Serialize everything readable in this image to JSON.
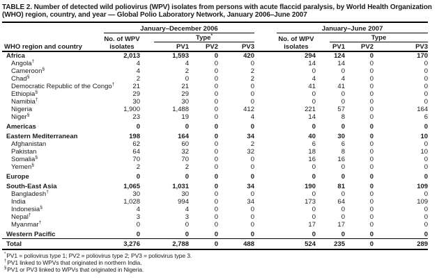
{
  "title": "TABLE 2. Number of detected wild poliovirus (WPV) isolates from persons with acute flaccid paralysis, by World Health Organization (WHO) region, country, and year — Global Polio Laboratory Network, January 2006–June 2007",
  "headers": {
    "stub": "WHO region and country",
    "group_2006": "January–December 2006",
    "group_2007": "January–June 2007",
    "isolates_line1": "No. of WPV",
    "isolates_line2": "isolates",
    "type_label": "Type",
    "type_2006_sup": "*",
    "pv1": "PV1",
    "pv2": "PV2",
    "pv3": "PV3"
  },
  "table": {
    "rows": [
      {
        "name": "Africa",
        "sup": "",
        "type": "region",
        "gap": false,
        "values": [
          "2,013",
          "1,593",
          "0",
          "420",
          "294",
          "124",
          "0",
          "170"
        ]
      },
      {
        "name": "Angola",
        "sup": "†",
        "type": "country",
        "gap": false,
        "values": [
          "4",
          "4",
          "0",
          "0",
          "14",
          "14",
          "0",
          "0"
        ]
      },
      {
        "name": "Cameroon",
        "sup": "§",
        "type": "country",
        "gap": false,
        "values": [
          "4",
          "2",
          "0",
          "2",
          "0",
          "0",
          "0",
          "0"
        ]
      },
      {
        "name": "Chad",
        "sup": "§",
        "type": "country",
        "gap": false,
        "values": [
          "2",
          "0",
          "0",
          "2",
          "4",
          "4",
          "0",
          "0"
        ]
      },
      {
        "name": "Democratic Republic of the Congo",
        "sup": "†",
        "type": "country",
        "gap": false,
        "values": [
          "21",
          "21",
          "0",
          "0",
          "41",
          "41",
          "0",
          "0"
        ]
      },
      {
        "name": "Ethiopia",
        "sup": "§",
        "type": "country",
        "gap": false,
        "values": [
          "29",
          "29",
          "0",
          "0",
          "0",
          "0",
          "0",
          "0"
        ]
      },
      {
        "name": "Namibia",
        "sup": "†",
        "type": "country",
        "gap": false,
        "values": [
          "30",
          "30",
          "0",
          "0",
          "0",
          "0",
          "0",
          "0"
        ]
      },
      {
        "name": "Nigeria",
        "sup": "",
        "type": "country",
        "gap": false,
        "values": [
          "1,900",
          "1,488",
          "0",
          "412",
          "221",
          "57",
          "0",
          "164"
        ]
      },
      {
        "name": "Niger",
        "sup": "§",
        "type": "country",
        "gap": false,
        "values": [
          "23",
          "19",
          "0",
          "4",
          "14",
          "8",
          "0",
          "6"
        ]
      },
      {
        "name": "Americas",
        "sup": "",
        "type": "region",
        "gap": true,
        "values": [
          "0",
          "0",
          "0",
          "0",
          "0",
          "0",
          "0",
          "0"
        ]
      },
      {
        "name": "Eastern Mediterranean",
        "sup": "",
        "type": "region",
        "gap": true,
        "values": [
          "198",
          "164",
          "0",
          "34",
          "40",
          "30",
          "0",
          "10"
        ]
      },
      {
        "name": "Afghanistan",
        "sup": "",
        "type": "country",
        "gap": false,
        "values": [
          "62",
          "60",
          "0",
          "2",
          "6",
          "6",
          "0",
          "0"
        ]
      },
      {
        "name": "Pakistan",
        "sup": "",
        "type": "country",
        "gap": false,
        "values": [
          "64",
          "32",
          "0",
          "32",
          "18",
          "8",
          "0",
          "10"
        ]
      },
      {
        "name": "Somalia",
        "sup": "§",
        "type": "country",
        "gap": false,
        "values": [
          "70",
          "70",
          "0",
          "0",
          "16",
          "16",
          "0",
          "0"
        ]
      },
      {
        "name": "Yemen",
        "sup": "§",
        "type": "country",
        "gap": false,
        "values": [
          "2",
          "2",
          "0",
          "0",
          "0",
          "0",
          "0",
          "0"
        ]
      },
      {
        "name": "Europe",
        "sup": "",
        "type": "region",
        "gap": true,
        "values": [
          "0",
          "0",
          "0",
          "0",
          "0",
          "0",
          "0",
          "0"
        ]
      },
      {
        "name": "South-East Asia",
        "sup": "",
        "type": "region",
        "gap": true,
        "values": [
          "1,065",
          "1,031",
          "0",
          "34",
          "190",
          "81",
          "0",
          "109"
        ]
      },
      {
        "name": "Bangladesh",
        "sup": "†",
        "type": "country",
        "gap": false,
        "values": [
          "30",
          "30",
          "0",
          "0",
          "0",
          "0",
          "0",
          "0"
        ]
      },
      {
        "name": "India",
        "sup": "",
        "type": "country",
        "gap": false,
        "values": [
          "1,028",
          "994",
          "0",
          "34",
          "173",
          "64",
          "0",
          "109"
        ]
      },
      {
        "name": "Indonesia",
        "sup": "§",
        "type": "country",
        "gap": false,
        "values": [
          "4",
          "4",
          "0",
          "0",
          "0",
          "0",
          "0",
          "0"
        ]
      },
      {
        "name": "Nepal",
        "sup": "†",
        "type": "country",
        "gap": false,
        "values": [
          "3",
          "3",
          "0",
          "0",
          "0",
          "0",
          "0",
          "0"
        ]
      },
      {
        "name": "Myanmar",
        "sup": "†",
        "type": "country",
        "gap": false,
        "values": [
          "0",
          "0",
          "0",
          "0",
          "17",
          "17",
          "0",
          "0"
        ]
      },
      {
        "name": "Western Pacific",
        "sup": "",
        "type": "region",
        "gap": true,
        "values": [
          "0",
          "0",
          "0",
          "0",
          "0",
          "0",
          "0",
          "0"
        ]
      },
      {
        "name": "Total",
        "sup": "",
        "type": "total",
        "gap": true,
        "values": [
          "3,276",
          "2,788",
          "0",
          "488",
          "524",
          "235",
          "0",
          "289"
        ]
      }
    ]
  },
  "footnotes": [
    {
      "marker": "*",
      "text": "PV1 = poliovirus type 1; PV2 = poliovirus type 2; PV3 = poliovirus type 3."
    },
    {
      "marker": "†",
      "text": "PV1 linked to WPVs that originated in northern India."
    },
    {
      "marker": "§",
      "text": "PV1 or PV3 linked to WPVs that originated in Nigeria."
    }
  ]
}
